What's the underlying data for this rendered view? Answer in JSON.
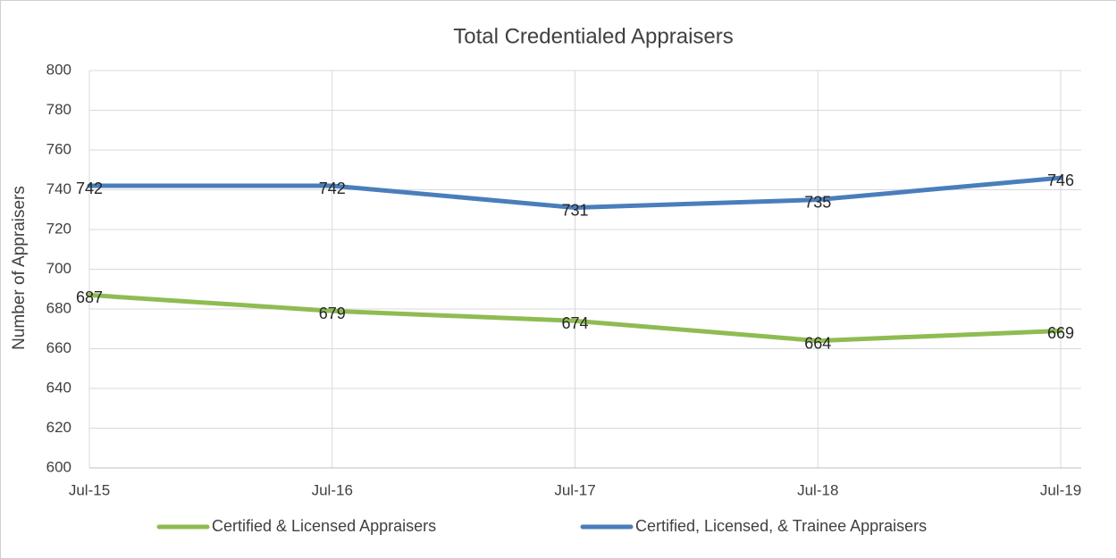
{
  "chart_data": {
    "type": "line",
    "title": "Total Credentialed Appraisers",
    "y_label": "Number of Appraisers",
    "categories": [
      "Jul-15",
      "Jul-16",
      "Jul-17",
      "Jul-18",
      "Jul-19"
    ],
    "series": [
      {
        "name": "Certified & Licensed Appraisers",
        "color": "#8fbc52",
        "values": [
          687,
          679,
          674,
          664,
          669
        ]
      },
      {
        "name": "Certified, Licensed, & Trainee Appraisers",
        "color": "#4a7ebb",
        "values": [
          742,
          742,
          731,
          735,
          746
        ]
      }
    ],
    "ylim": [
      600,
      800
    ],
    "yticks": [
      600,
      620,
      640,
      660,
      680,
      700,
      720,
      740,
      760,
      780,
      800
    ],
    "grid": true,
    "legend": "bottom"
  }
}
